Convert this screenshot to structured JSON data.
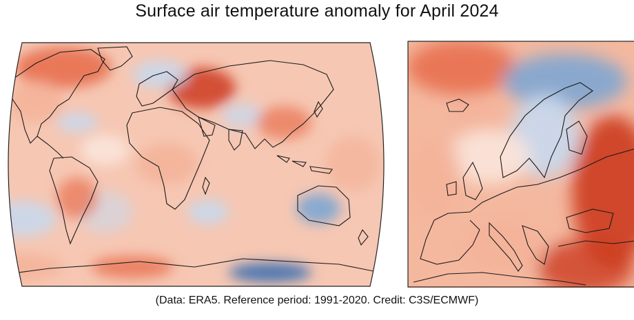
{
  "title": "Surface air temperature anomaly for April 2024",
  "credit": "(Data: ERA5.  Reference period: 1991-2020.  Credit: C3S/ECMWF)",
  "colors": {
    "warm_strong": "#cc3b1f",
    "warm_mid": "#e8704f",
    "warm_light": "#f4b49a",
    "neutral": "#fbe6dc",
    "cool_light": "#c9d8ec",
    "cool_mid": "#7ea6d3",
    "cool_strong": "#3b6fb0",
    "coastline": "#1a1a1a",
    "frame": "#222222"
  },
  "maps": [
    {
      "name": "global",
      "projection": "robinson",
      "variable": "surface air temperature anomaly"
    },
    {
      "name": "europe",
      "projection": "regional",
      "variable": "surface air temperature anomaly"
    }
  ]
}
